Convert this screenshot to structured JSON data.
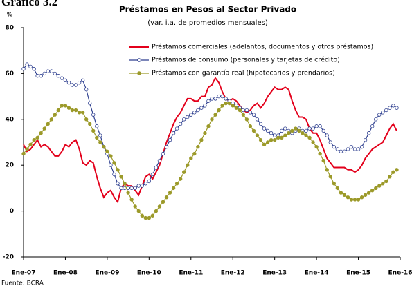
{
  "chart_data": {
    "type": "line",
    "corner_title": "Gráfico 3.2",
    "title": "Préstamos en Pesos al Sector Privado",
    "subtitle": "(var. i.a. de promedios mensuales)",
    "y_unit": "%",
    "source": "Fuente: BCRA",
    "categories": [
      "Ene-07",
      null,
      null,
      null,
      null,
      null,
      null,
      null,
      null,
      null,
      null,
      null,
      "Ene-08",
      null,
      null,
      null,
      null,
      null,
      null,
      null,
      null,
      null,
      null,
      null,
      "Ene-09",
      null,
      null,
      null,
      null,
      null,
      null,
      null,
      null,
      null,
      null,
      null,
      "Ene-10",
      null,
      null,
      null,
      null,
      null,
      null,
      null,
      null,
      null,
      null,
      null,
      "Ene-11",
      null,
      null,
      null,
      null,
      null,
      null,
      null,
      null,
      null,
      null,
      null,
      "Ene-12",
      null,
      null,
      null,
      null,
      null,
      null,
      null,
      null,
      null,
      null,
      null,
      "Ene-13",
      null,
      null,
      null,
      null,
      null,
      null,
      null,
      null,
      null,
      null,
      null,
      "Ene-14",
      null,
      null,
      null,
      null,
      null,
      null,
      null,
      null,
      null,
      null,
      null,
      "Ene-15",
      null,
      null,
      null,
      null,
      null,
      null,
      null,
      null,
      null,
      null,
      null,
      "Ene-16"
    ],
    "ylim": [
      -20,
      80
    ],
    "yticks": [
      -20,
      0,
      20,
      40,
      60,
      80
    ],
    "legend": "top-right",
    "series": [
      {
        "name": "Préstamos comerciales (adelantos, documentos y otros préstamos)",
        "color": "#e3001b",
        "marker": "none",
        "values": [
          29,
          26,
          27,
          29,
          31,
          28,
          29,
          28,
          26,
          24,
          24,
          26,
          29,
          28,
          30,
          31,
          27,
          21,
          20,
          22,
          21,
          15,
          10,
          6,
          8,
          9,
          6,
          4,
          10,
          12,
          11,
          11,
          9,
          7,
          11,
          15,
          16,
          14,
          17,
          20,
          25,
          30,
          34,
          38,
          41,
          43,
          46,
          49,
          49,
          48,
          48,
          50,
          50,
          54,
          55,
          58,
          56,
          52,
          49,
          48,
          49,
          48,
          46,
          44,
          43,
          44,
          46,
          47,
          45,
          47,
          50,
          52,
          54,
          53,
          53,
          54,
          53,
          48,
          44,
          41,
          41,
          40,
          36,
          34,
          34,
          31,
          27,
          23,
          21,
          19,
          19,
          19,
          19,
          18,
          18,
          17,
          18,
          20,
          23,
          25,
          27,
          28,
          29,
          30,
          33,
          36,
          38,
          35,
          null
        ]
      },
      {
        "name": "Préstamos de consumo (personales y tarjetas de crédito)",
        "color": "#2e3f8f",
        "marker": "open-circle",
        "values": [
          62,
          64,
          63,
          62,
          59,
          59,
          60,
          61,
          61,
          60,
          59,
          58,
          57,
          56,
          55,
          55,
          56,
          57,
          53,
          47,
          42,
          37,
          33,
          28,
          25,
          20,
          16,
          12,
          10,
          10,
          10,
          10,
          10,
          11,
          11,
          12,
          13,
          16,
          19,
          22,
          25,
          28,
          31,
          34,
          36,
          38,
          40,
          41,
          42,
          43,
          44,
          45,
          46,
          48,
          49,
          49,
          50,
          50,
          49,
          48,
          47,
          46,
          45,
          44,
          44,
          43,
          42,
          40,
          38,
          36,
          35,
          34,
          33,
          33,
          35,
          36,
          35,
          34,
          35,
          36,
          35,
          35,
          36,
          36,
          37,
          37,
          35,
          33,
          30,
          28,
          27,
          26,
          26,
          27,
          28,
          27,
          27,
          28,
          31,
          34,
          37,
          40,
          42,
          43,
          44,
          45,
          46,
          45,
          null
        ]
      },
      {
        "name": "Préstamos con garantía real (hipotecarios y prendarios)",
        "color": "#9c9a2a",
        "marker": "circle",
        "values": [
          25,
          27,
          29,
          31,
          32,
          34,
          36,
          38,
          40,
          42,
          44,
          46,
          46,
          45,
          44,
          44,
          43,
          43,
          40,
          38,
          35,
          32,
          30,
          28,
          26,
          24,
          21,
          18,
          15,
          12,
          8,
          5,
          2,
          0,
          -2,
          -3,
          -3,
          -2,
          0,
          2,
          4,
          6,
          8,
          10,
          12,
          14,
          17,
          20,
          23,
          25,
          28,
          31,
          34,
          37,
          40,
          42,
          44,
          46,
          47,
          47,
          46,
          45,
          44,
          42,
          40,
          37,
          35,
          33,
          31,
          29,
          30,
          31,
          31,
          32,
          32,
          33,
          34,
          35,
          36,
          35,
          34,
          33,
          32,
          30,
          28,
          25,
          22,
          18,
          15,
          12,
          10,
          8,
          7,
          6,
          5,
          5,
          5,
          6,
          7,
          8,
          9,
          10,
          11,
          12,
          13,
          15,
          17,
          18,
          null
        ]
      }
    ]
  }
}
